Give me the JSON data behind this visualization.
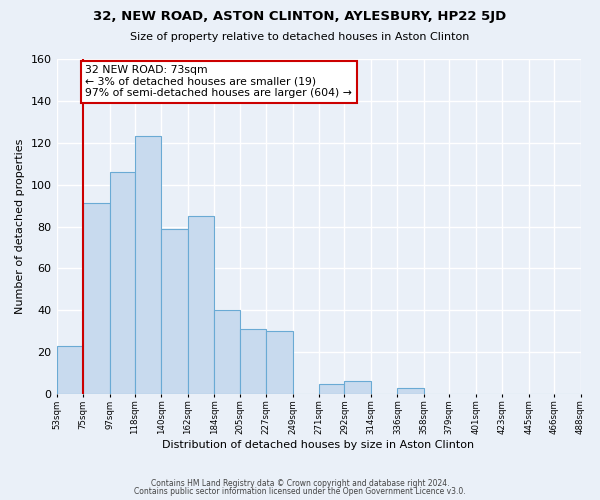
{
  "title": "32, NEW ROAD, ASTON CLINTON, AYLESBURY, HP22 5JD",
  "subtitle": "Size of property relative to detached houses in Aston Clinton",
  "xlabel": "Distribution of detached houses by size in Aston Clinton",
  "ylabel": "Number of detached properties",
  "bar_edges": [
    53,
    75,
    97,
    118,
    140,
    162,
    184,
    205,
    227,
    249,
    271,
    292,
    314,
    336,
    358,
    379,
    401,
    423,
    445,
    466,
    488
  ],
  "bar_values": [
    23,
    91,
    106,
    123,
    79,
    85,
    40,
    31,
    30,
    0,
    5,
    6,
    0,
    3,
    0,
    0,
    0,
    0,
    0,
    0
  ],
  "bar_color": "#c8daee",
  "bar_edge_color": "#6aaad4",
  "property_line_x": 75,
  "annotation_title": "32 NEW ROAD: 73sqm",
  "annotation_line1": "← 3% of detached houses are smaller (19)",
  "annotation_line2": "97% of semi-detached houses are larger (604) →",
  "annotation_box_color": "#ffffff",
  "annotation_box_edge_color": "#cc0000",
  "property_line_color": "#cc0000",
  "ylim": [
    0,
    160
  ],
  "yticks": [
    0,
    20,
    40,
    60,
    80,
    100,
    120,
    140,
    160
  ],
  "footer1": "Contains HM Land Registry data © Crown copyright and database right 2024.",
  "footer2": "Contains public sector information licensed under the Open Government Licence v3.0.",
  "bg_color": "#eaf0f8",
  "grid_color": "#ffffff",
  "tick_labels": [
    "53sqm",
    "75sqm",
    "97sqm",
    "118sqm",
    "140sqm",
    "162sqm",
    "184sqm",
    "205sqm",
    "227sqm",
    "249sqm",
    "271sqm",
    "292sqm",
    "314sqm",
    "336sqm",
    "358sqm",
    "379sqm",
    "401sqm",
    "423sqm",
    "445sqm",
    "466sqm",
    "488sqm"
  ]
}
